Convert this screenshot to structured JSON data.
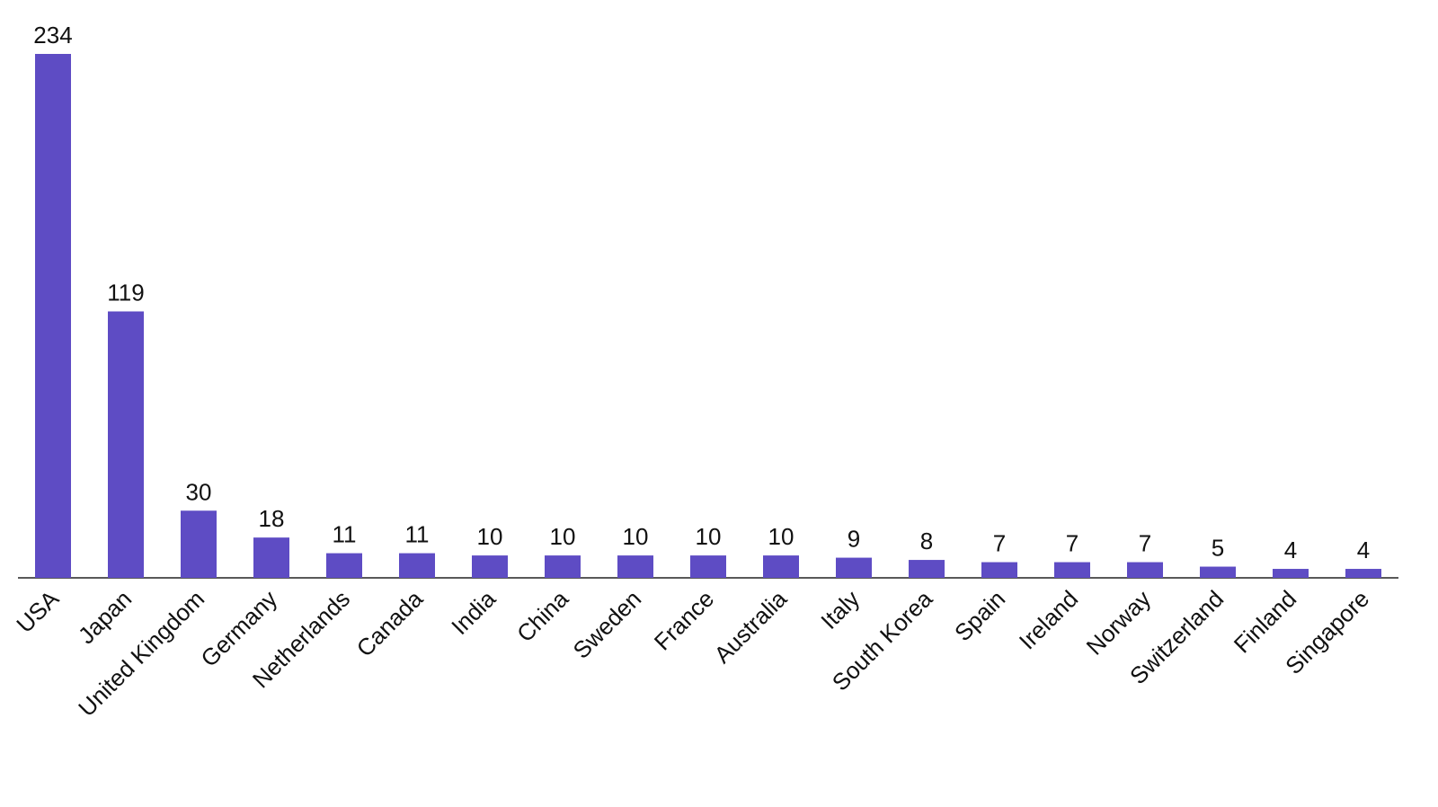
{
  "chart_data": {
    "type": "bar",
    "categories": [
      "USA",
      "Japan",
      "United Kingdom",
      "Germany",
      "Netherlands",
      "Canada",
      "India",
      "China",
      "Sweden",
      "France",
      "Australia",
      "Italy",
      "South Korea",
      "Spain",
      "Ireland",
      "Norway",
      "Switzerland",
      "Finland",
      "Singapore"
    ],
    "values": [
      234,
      119,
      30,
      18,
      11,
      11,
      10,
      10,
      10,
      10,
      10,
      9,
      8,
      7,
      7,
      7,
      5,
      4,
      4
    ],
    "color": "#5e4cc4"
  }
}
